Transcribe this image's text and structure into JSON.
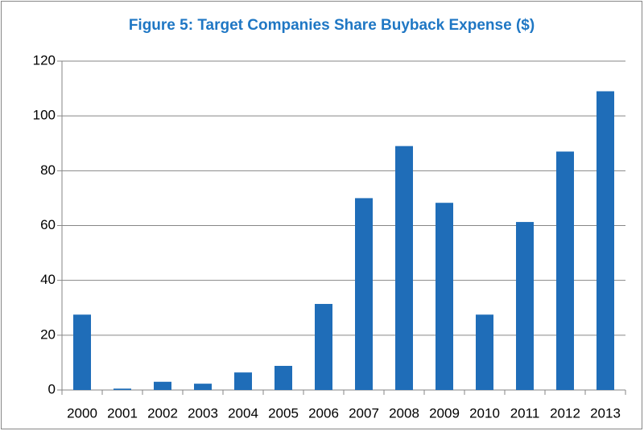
{
  "chart_data": {
    "type": "bar",
    "title": "Figure 5: Target Companies Share Buyback Expense ($)",
    "categories": [
      "2000",
      "2001",
      "2002",
      "2003",
      "2004",
      "2005",
      "2006",
      "2007",
      "2008",
      "2009",
      "2010",
      "2011",
      "2012",
      "2013"
    ],
    "values": [
      27.5,
      0.5,
      3,
      2.3,
      6.4,
      8.8,
      31.4,
      70,
      89,
      68.3,
      27.5,
      61.3,
      87,
      109
    ],
    "color": "#1f6db8",
    "ylim": [
      0,
      120
    ],
    "yticks": [
      0,
      20,
      40,
      60,
      80,
      100,
      120
    ],
    "grid": true
  }
}
